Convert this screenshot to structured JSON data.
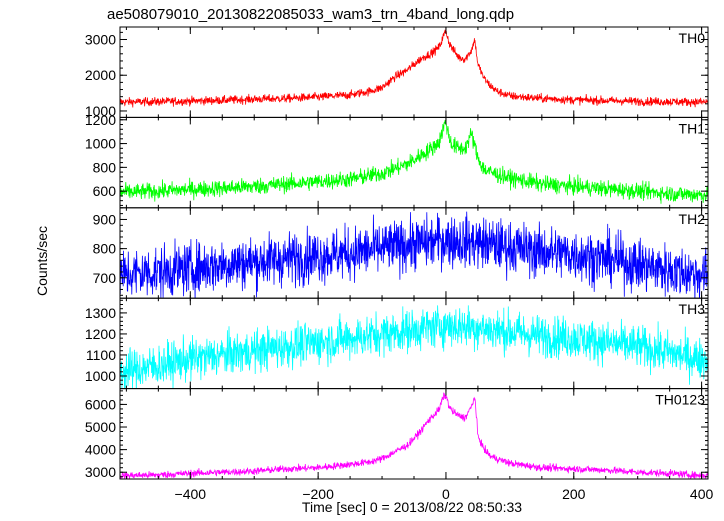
{
  "chart_data": {
    "type": "line",
    "title": "ae508079010_20130822085033_wam3_trn_4band_long.qdp",
    "xlabel": "Time [sec] 0 = 2013/08/22 08:50:33",
    "ylabel": "Counts/sec",
    "xlim": [
      -510,
      410
    ],
    "xticks": [
      -400,
      -200,
      0,
      200,
      400
    ],
    "grid": false,
    "panels": [
      {
        "name": "TH0",
        "color": "#ff0000",
        "ylim": [
          820,
          3350
        ],
        "yticks": [
          1000,
          2000,
          3000
        ],
        "x": [
          -510,
          -450,
          -400,
          -350,
          -300,
          -250,
          -200,
          -150,
          -120,
          -100,
          -90,
          -80,
          -70,
          -60,
          -50,
          -40,
          -30,
          -20,
          -10,
          -5,
          0,
          5,
          10,
          20,
          30,
          40,
          45,
          50,
          60,
          70,
          80,
          100,
          150,
          200,
          250,
          300,
          350,
          400
        ],
        "values": [
          1250,
          1260,
          1280,
          1300,
          1330,
          1350,
          1390,
          1450,
          1550,
          1650,
          1800,
          1950,
          2050,
          2150,
          2300,
          2450,
          2550,
          2650,
          2800,
          3050,
          3250,
          2900,
          2750,
          2500,
          2450,
          2700,
          3000,
          2300,
          1900,
          1700,
          1550,
          1420,
          1350,
          1310,
          1290,
          1270,
          1260,
          1250
        ],
        "noise": 60
      },
      {
        "name": "TH1",
        "color": "#00ff00",
        "ylim": [
          460,
          1220
        ],
        "yticks": [
          600,
          800,
          1000,
          1200
        ],
        "x": [
          -510,
          -450,
          -400,
          -350,
          -300,
          -250,
          -200,
          -150,
          -120,
          -100,
          -80,
          -60,
          -50,
          -40,
          -30,
          -20,
          -10,
          -5,
          0,
          5,
          10,
          20,
          30,
          40,
          50,
          60,
          80,
          100,
          150,
          200,
          250,
          300,
          350,
          400
        ],
        "values": [
          590,
          600,
          615,
          625,
          640,
          660,
          680,
          700,
          730,
          750,
          790,
          830,
          860,
          900,
          930,
          970,
          1020,
          1120,
          1180,
          1050,
          990,
          960,
          960,
          1080,
          880,
          780,
          740,
          710,
          660,
          640,
          620,
          600,
          580,
          570
        ],
        "noise": 35
      },
      {
        "name": "TH2",
        "color": "#0000ff",
        "ylim": [
          630,
          940
        ],
        "yticks": [
          700,
          800,
          900
        ],
        "x": [
          -510,
          -450,
          -400,
          -350,
          -300,
          -250,
          -200,
          -150,
          -100,
          -50,
          0,
          50,
          100,
          150,
          200,
          250,
          300,
          350,
          400
        ],
        "values": [
          710,
          720,
          730,
          745,
          755,
          765,
          775,
          785,
          800,
          815,
          830,
          820,
          805,
          790,
          780,
          765,
          745,
          725,
          710
        ],
        "noise": 45
      },
      {
        "name": "TH3",
        "color": "#00ffff",
        "ylim": [
          940,
          1370
        ],
        "yticks": [
          1000,
          1100,
          1200,
          1300
        ],
        "x": [
          -510,
          -450,
          -400,
          -350,
          -300,
          -250,
          -200,
          -150,
          -100,
          -50,
          0,
          50,
          100,
          150,
          200,
          250,
          300,
          350,
          400
        ],
        "values": [
          1020,
          1050,
          1080,
          1100,
          1120,
          1140,
          1160,
          1180,
          1200,
          1220,
          1240,
          1230,
          1210,
          1190,
          1180,
          1160,
          1140,
          1110,
          1080
        ],
        "noise": 50
      },
      {
        "name": "TH0123",
        "color": "#ff00ff",
        "ylim": [
          2700,
          6700
        ],
        "yticks": [
          3000,
          4000,
          5000,
          6000
        ],
        "x": [
          -510,
          -450,
          -400,
          -350,
          -300,
          -250,
          -200,
          -150,
          -120,
          -100,
          -80,
          -60,
          -50,
          -40,
          -30,
          -20,
          -10,
          -5,
          0,
          5,
          10,
          20,
          30,
          40,
          45,
          50,
          60,
          70,
          100,
          150,
          200,
          250,
          300,
          350,
          400
        ],
        "values": [
          2850,
          2880,
          2950,
          3000,
          3050,
          3150,
          3200,
          3350,
          3450,
          3600,
          3900,
          4200,
          4500,
          4800,
          5200,
          5500,
          5800,
          6300,
          6400,
          5900,
          5700,
          5500,
          5400,
          5900,
          6350,
          4600,
          4000,
          3700,
          3400,
          3200,
          3150,
          3100,
          3000,
          2950,
          2850
        ],
        "noise": 80
      }
    ]
  }
}
